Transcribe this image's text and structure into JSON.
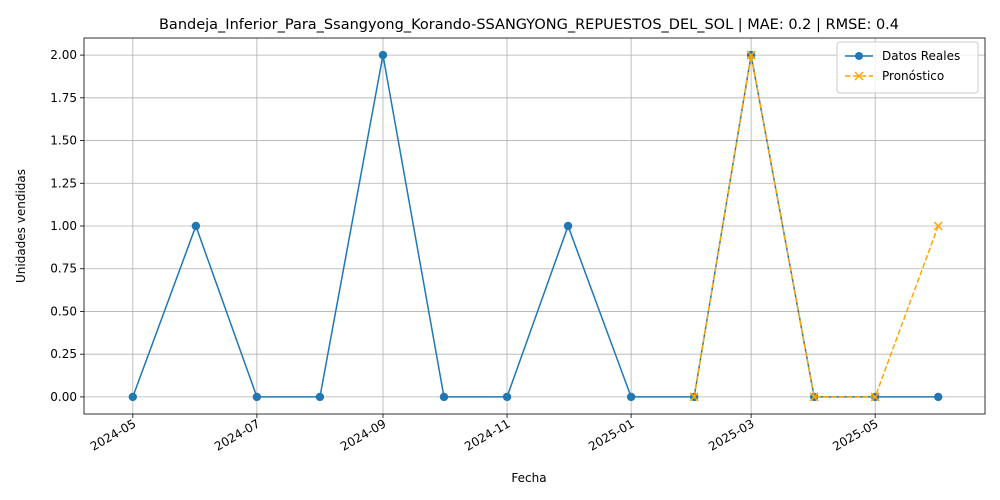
{
  "chart_data": {
    "type": "line",
    "title": "Bandeja_Inferior_Para_Ssangyong_Korando-SSANGYONG_REPUESTOS_DEL_SOL | MAE: 0.2 | RMSE: 0.4",
    "xlabel": "Fecha",
    "ylabel": "Unidades vendidas",
    "xlim": [
      "2024-04-07",
      "2025-06-24"
    ],
    "ylim": [
      -0.1,
      2.1
    ],
    "grid": true,
    "legend_position": "top-right",
    "x_ticks": [
      "2024-05",
      "2024-07",
      "2024-09",
      "2024-11",
      "2025-01",
      "2025-03",
      "2025-05"
    ],
    "y_ticks": [
      "0.00",
      "0.25",
      "0.50",
      "0.75",
      "1.00",
      "1.25",
      "1.50",
      "1.75",
      "2.00"
    ],
    "series": [
      {
        "name": "Datos Reales",
        "color": "#1f77b4",
        "marker": "circle",
        "linestyle": "solid",
        "x": [
          "2024-05-01",
          "2024-06-01",
          "2024-07-01",
          "2024-08-01",
          "2024-09-01",
          "2024-10-01",
          "2024-11-01",
          "2024-12-01",
          "2025-01-01",
          "2025-02-01",
          "2025-03-01",
          "2025-04-01",
          "2025-05-01",
          "2025-06-01"
        ],
        "values": [
          0,
          1,
          0,
          0,
          2,
          0,
          0,
          1,
          0,
          0,
          2,
          0,
          0,
          0
        ]
      },
      {
        "name": "Pronóstico",
        "color": "#ffa500",
        "marker": "x",
        "linestyle": "dashed",
        "x": [
          "2025-02-01",
          "2025-03-01",
          "2025-04-01",
          "2025-05-01",
          "2025-06-01"
        ],
        "values": [
          0,
          2,
          0,
          0,
          1
        ]
      }
    ]
  }
}
